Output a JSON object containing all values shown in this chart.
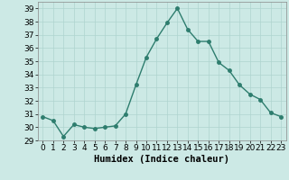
{
  "x": [
    0,
    1,
    2,
    3,
    4,
    5,
    6,
    7,
    8,
    9,
    10,
    11,
    12,
    13,
    14,
    15,
    16,
    17,
    18,
    19,
    20,
    21,
    22,
    23
  ],
  "y": [
    30.8,
    30.5,
    29.3,
    30.2,
    30.0,
    29.9,
    30.0,
    30.1,
    31.0,
    33.2,
    35.3,
    36.7,
    37.9,
    39.0,
    37.4,
    36.5,
    36.5,
    34.9,
    34.3,
    33.2,
    32.5,
    32.1,
    31.1,
    30.8
  ],
  "line_color": "#2e7d6e",
  "marker": "o",
  "marker_size": 2.5,
  "line_width": 1.0,
  "bg_color": "#cce9e5",
  "grid_color": "#aed4cf",
  "xlabel": "Humidex (Indice chaleur)",
  "ylim": [
    29,
    39.5
  ],
  "xlim": [
    -0.5,
    23.5
  ],
  "yticks": [
    29,
    30,
    31,
    32,
    33,
    34,
    35,
    36,
    37,
    38,
    39
  ],
  "xticks": [
    0,
    1,
    2,
    3,
    4,
    5,
    6,
    7,
    8,
    9,
    10,
    11,
    12,
    13,
    14,
    15,
    16,
    17,
    18,
    19,
    20,
    21,
    22,
    23
  ],
  "tick_fontsize": 6.5,
  "xlabel_fontsize": 7.5
}
